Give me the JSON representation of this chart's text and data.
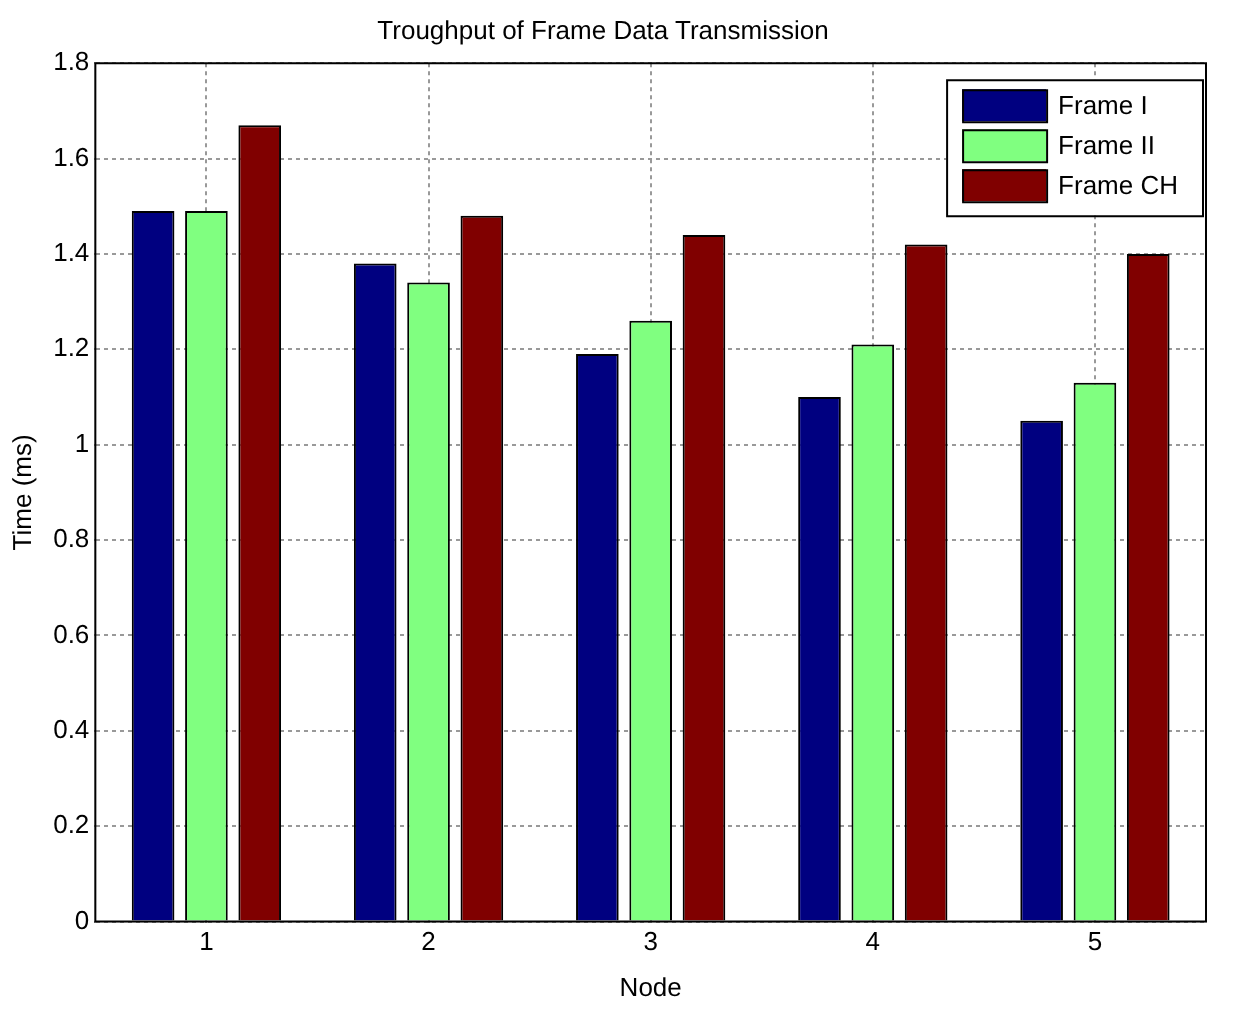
{
  "chart_data": {
    "type": "bar",
    "title": "Troughput of Frame Data Transmission",
    "xlabel": "Node",
    "ylabel": "Time (ms)",
    "categories": [
      "1",
      "2",
      "3",
      "4",
      "5"
    ],
    "series": [
      {
        "name": "Frame I",
        "color": "#000080",
        "values": [
          1.49,
          1.38,
          1.19,
          1.1,
          1.05
        ]
      },
      {
        "name": "Frame II",
        "color": "#80ff80",
        "values": [
          1.49,
          1.34,
          1.26,
          1.21,
          1.13
        ]
      },
      {
        "name": "Frame CH",
        "color": "#800000",
        "values": [
          1.67,
          1.48,
          1.44,
          1.42,
          1.4
        ]
      }
    ],
    "ylim": [
      0,
      1.8
    ],
    "yticks": [
      0,
      0.2,
      0.4,
      0.6,
      0.8,
      1,
      1.2,
      1.4,
      1.6,
      1.8
    ],
    "grid": true,
    "legend": "top right"
  }
}
